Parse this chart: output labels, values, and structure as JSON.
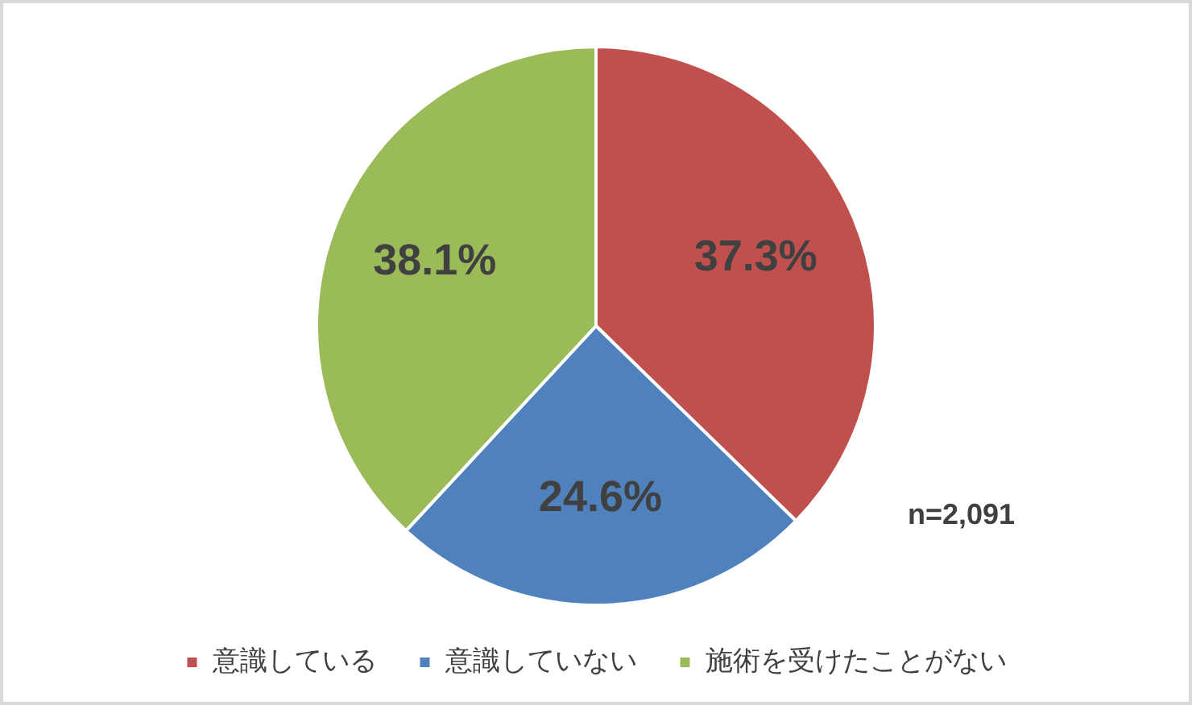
{
  "chart_data": {
    "type": "pie",
    "categories": [
      "意識している",
      "意識していない",
      "施術を受けたことがない"
    ],
    "values": [
      37.3,
      24.6,
      38.1
    ],
    "colors": [
      "#c0504d",
      "#4f81bd",
      "#9bbb59"
    ],
    "value_labels": [
      "37.3%",
      "24.6%",
      "38.1%"
    ],
    "legend": "bottom",
    "annotations": [
      "n=2,091"
    ]
  }
}
